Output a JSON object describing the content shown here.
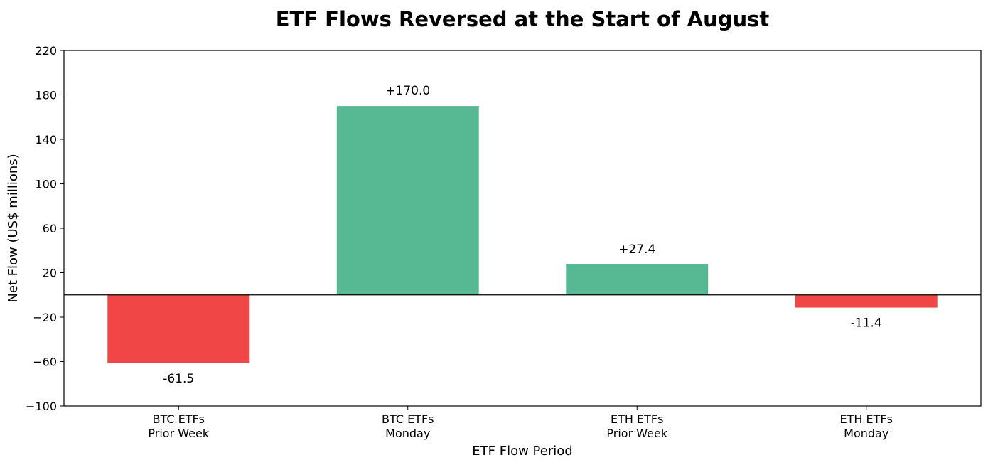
{
  "chart_data": {
    "type": "bar",
    "title": "ETF Flows Reversed at the Start of August",
    "xlabel": "ETF Flow Period",
    "ylabel": "Net Flow (US$ millions)",
    "categories": [
      [
        "BTC ETFs",
        "Prior Week"
      ],
      [
        "BTC ETFs",
        "Monday"
      ],
      [
        "ETH ETFs",
        "Prior Week"
      ],
      [
        "ETH ETFs",
        "Monday"
      ]
    ],
    "values": [
      -61.5,
      170.0,
      27.4,
      -11.4
    ],
    "data_labels": [
      "-61.5",
      "+170.0",
      "+27.4",
      "-11.4"
    ],
    "ylim": [
      -100,
      220
    ],
    "yticks": [
      -100,
      -60,
      -20,
      20,
      60,
      100,
      140,
      180,
      220
    ],
    "ytick_labels": [
      "−100",
      "−60",
      "−20",
      "20",
      "60",
      "100",
      "140",
      "180",
      "220"
    ],
    "grid": false,
    "colors": {
      "positive": "#57b894",
      "negative": "#f04646"
    }
  }
}
